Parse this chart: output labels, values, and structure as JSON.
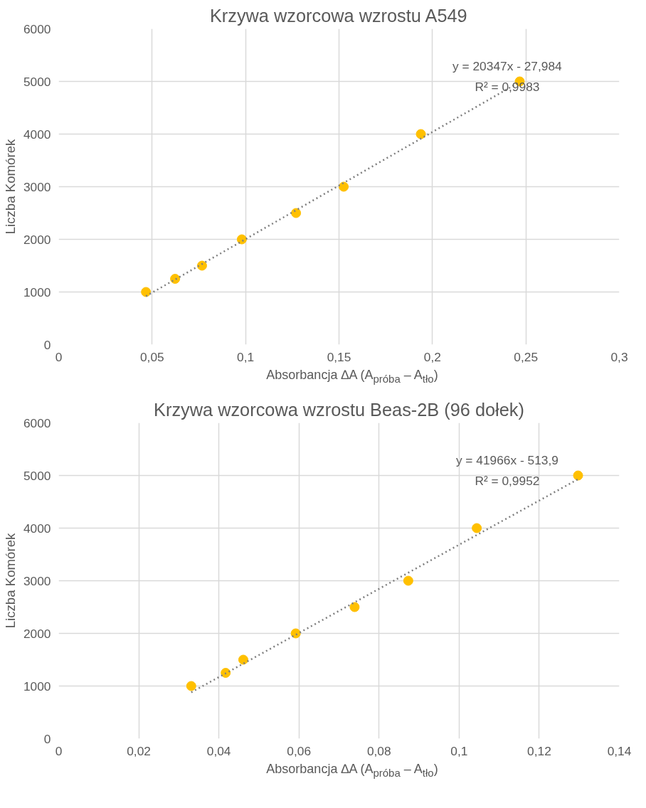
{
  "chart_data": [
    {
      "type": "scatter",
      "title": "Krzywa wzorcowa wzrostu A549",
      "xlabel": "Absorbancja ∆A (A$_{próba}$ – A$_{tło}$)",
      "ylabel": "Liczba Komórek",
      "x": [
        0.0467,
        0.0623,
        0.0767,
        0.098,
        0.127,
        0.1525,
        0.1938,
        0.2467
      ],
      "series": [
        {
          "color": "#ffc000",
          "values": [
            1000,
            1250,
            1500,
            2000,
            2500,
            3000,
            4000,
            5000
          ]
        },
        {
          "type": "line",
          "color": "#7f7f7f",
          "line_style": "dotted",
          "marker": "none",
          "x": [
            0.0467,
            0.2467
          ],
          "values": [
            920,
            4990
          ]
        }
      ],
      "annotations": [
        "y = 20347x - 27,984",
        "R² = 0,9983"
      ],
      "marker": "circle",
      "grid": true,
      "xlim": [
        0,
        0.3
      ],
      "ylim": [
        0,
        6000
      ],
      "xticks": [
        0,
        {
          "value": 0.05,
          "label": "0,05"
        },
        {
          "value": 0.1,
          "label": "0,1"
        },
        {
          "value": 0.15,
          "label": "0,15"
        },
        {
          "value": 0.2,
          "label": "0,2"
        },
        {
          "value": 0.25,
          "label": "0,25"
        },
        {
          "value": 0.3,
          "label": "0,3"
        }
      ],
      "yticks": [
        0,
        1000,
        2000,
        3000,
        4000,
        5000,
        6000
      ]
    },
    {
      "type": "scatter",
      "title": "Krzywa wzorcowa wzrostu Beas-2B (96 dołek)",
      "xlabel": "Absorbancja ∆A (A$_{próba}$ – A$_{tło}$)",
      "ylabel": "Liczba Komórek",
      "x": [
        0.0331,
        0.0417,
        0.0461,
        0.0592,
        0.0739,
        0.0873,
        0.1044,
        0.1297
      ],
      "series": [
        {
          "color": "#ffc000",
          "values": [
            1000,
            1250,
            1500,
            2000,
            2500,
            3000,
            4000,
            5000
          ]
        },
        {
          "type": "line",
          "color": "#7f7f7f",
          "line_style": "dotted",
          "marker": "none",
          "x": [
            0.0331,
            0.1297
          ],
          "values": [
            880,
            4930
          ]
        }
      ],
      "annotations": [
        "y = 41966x - 513,9",
        "R² = 0,9952"
      ],
      "marker": "circle",
      "grid": true,
      "xlim": [
        0,
        0.14
      ],
      "ylim": [
        0,
        6000
      ],
      "xticks": [
        0,
        {
          "value": 0.02,
          "label": "0,02"
        },
        {
          "value": 0.04,
          "label": "0,04"
        },
        {
          "value": 0.06,
          "label": "0,06"
        },
        {
          "value": 0.08,
          "label": "0,08"
        },
        {
          "value": 0.1,
          "label": "0,1"
        },
        {
          "value": 0.12,
          "label": "0,12"
        },
        {
          "value": 0.14,
          "label": "0,14"
        }
      ],
      "yticks": [
        0,
        1000,
        2000,
        3000,
        4000,
        5000,
        6000
      ]
    }
  ]
}
